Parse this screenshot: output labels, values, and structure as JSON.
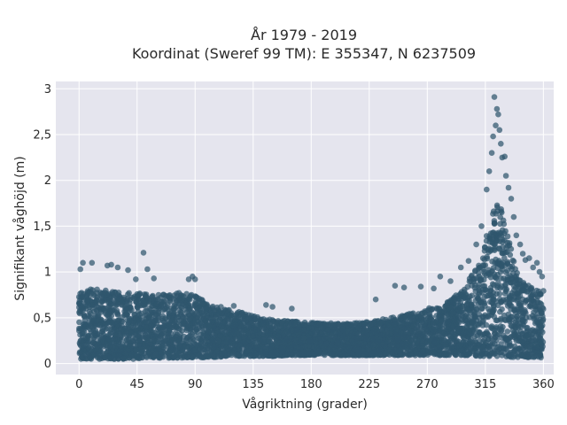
{
  "chart_data": {
    "type": "scatter",
    "title": "År 1979 - 2019",
    "subtitle": "Koordinat (Sweref 99 TM): E 355347, N 6237509",
    "xlabel": "Vågriktning (grader)",
    "ylabel": "Signifikant våghöjd (m)",
    "xlim": [
      -18,
      368
    ],
    "ylim": [
      -0.12,
      3.08
    ],
    "x_ticks": [
      0,
      45,
      90,
      135,
      180,
      225,
      270,
      315,
      360
    ],
    "x_tick_labels": [
      "0",
      "45",
      "90",
      "135",
      "180",
      "225",
      "270",
      "315",
      "360"
    ],
    "y_ticks": [
      0,
      0.5,
      1,
      1.5,
      2,
      2.5,
      3
    ],
    "y_tick_labels": [
      "0",
      "0,5",
      "1",
      "1,5",
      "2",
      "2,5",
      "3"
    ],
    "grid": true,
    "background": "#e5e5ee",
    "marker_color": "#2f566e",
    "series": [
      {
        "envelope_x": [
          0,
          10,
          20,
          30,
          40,
          45,
          50,
          60,
          70,
          80,
          90,
          100,
          110,
          120,
          130,
          140,
          150,
          160,
          170,
          180,
          190,
          200,
          210,
          220,
          230,
          240,
          250,
          260,
          270,
          280,
          290,
          300,
          305,
          310,
          315,
          320,
          323,
          326,
          330,
          335,
          340,
          345,
          350,
          355,
          360
        ],
        "envelope_low": [
          0.05,
          0.05,
          0.05,
          0.05,
          0.05,
          0.05,
          0.05,
          0.06,
          0.06,
          0.06,
          0.06,
          0.07,
          0.07,
          0.08,
          0.08,
          0.08,
          0.08,
          0.09,
          0.09,
          0.09,
          0.09,
          0.09,
          0.09,
          0.09,
          0.09,
          0.09,
          0.09,
          0.09,
          0.09,
          0.09,
          0.09,
          0.09,
          0.08,
          0.08,
          0.08,
          0.08,
          0.08,
          0.08,
          0.08,
          0.07,
          0.07,
          0.07,
          0.06,
          0.06,
          0.05
        ],
        "envelope_high": [
          0.8,
          0.82,
          0.8,
          0.78,
          0.77,
          0.77,
          0.76,
          0.75,
          0.77,
          0.78,
          0.75,
          0.65,
          0.6,
          0.58,
          0.55,
          0.52,
          0.48,
          0.47,
          0.46,
          0.45,
          0.44,
          0.44,
          0.44,
          0.45,
          0.47,
          0.5,
          0.53,
          0.56,
          0.6,
          0.64,
          0.72,
          0.86,
          0.98,
          1.1,
          1.35,
          1.6,
          1.75,
          1.75,
          1.55,
          1.25,
          1.0,
          0.9,
          0.85,
          0.8,
          0.8
        ]
      }
    ],
    "outliers": [
      {
        "x": 1,
        "y": 1.03
      },
      {
        "x": 3,
        "y": 1.1
      },
      {
        "x": 10,
        "y": 1.1
      },
      {
        "x": 22,
        "y": 1.07
      },
      {
        "x": 25,
        "y": 1.08
      },
      {
        "x": 30,
        "y": 1.05
      },
      {
        "x": 38,
        "y": 1.02
      },
      {
        "x": 44,
        "y": 0.92
      },
      {
        "x": 50,
        "y": 1.21
      },
      {
        "x": 53,
        "y": 1.03
      },
      {
        "x": 58,
        "y": 0.93
      },
      {
        "x": 85,
        "y": 0.92
      },
      {
        "x": 88,
        "y": 0.95
      },
      {
        "x": 90,
        "y": 0.92
      },
      {
        "x": 110,
        "y": 0.62
      },
      {
        "x": 120,
        "y": 0.63
      },
      {
        "x": 145,
        "y": 0.64
      },
      {
        "x": 150,
        "y": 0.62
      },
      {
        "x": 165,
        "y": 0.6
      },
      {
        "x": 230,
        "y": 0.7
      },
      {
        "x": 245,
        "y": 0.85
      },
      {
        "x": 252,
        "y": 0.83
      },
      {
        "x": 265,
        "y": 0.84
      },
      {
        "x": 275,
        "y": 0.82
      },
      {
        "x": 280,
        "y": 0.95
      },
      {
        "x": 288,
        "y": 0.9
      },
      {
        "x": 296,
        "y": 1.05
      },
      {
        "x": 302,
        "y": 1.12
      },
      {
        "x": 308,
        "y": 1.3
      },
      {
        "x": 312,
        "y": 1.5
      },
      {
        "x": 316,
        "y": 1.9
      },
      {
        "x": 318,
        "y": 2.1
      },
      {
        "x": 320,
        "y": 2.3
      },
      {
        "x": 321,
        "y": 2.48
      },
      {
        "x": 322,
        "y": 2.91
      },
      {
        "x": 323,
        "y": 2.6
      },
      {
        "x": 324,
        "y": 2.78
      },
      {
        "x": 325,
        "y": 2.72
      },
      {
        "x": 326,
        "y": 2.55
      },
      {
        "x": 327,
        "y": 2.4
      },
      {
        "x": 328,
        "y": 2.25
      },
      {
        "x": 330,
        "y": 2.26
      },
      {
        "x": 331,
        "y": 2.05
      },
      {
        "x": 333,
        "y": 1.92
      },
      {
        "x": 335,
        "y": 1.8
      },
      {
        "x": 337,
        "y": 1.6
      },
      {
        "x": 339,
        "y": 1.4
      },
      {
        "x": 342,
        "y": 1.3
      },
      {
        "x": 344,
        "y": 1.2
      },
      {
        "x": 346,
        "y": 1.13
      },
      {
        "x": 349,
        "y": 1.15
      },
      {
        "x": 352,
        "y": 1.05
      },
      {
        "x": 355,
        "y": 1.1
      },
      {
        "x": 357,
        "y": 1.0
      },
      {
        "x": 359,
        "y": 0.95
      }
    ]
  }
}
